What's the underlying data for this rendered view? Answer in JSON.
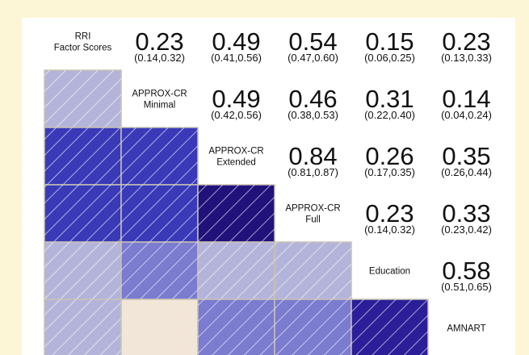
{
  "colors": {
    "background": "#fdf6d6",
    "panel": "#ffffff",
    "cell_border": "#c8c2b4",
    "hatch": "#ffffff",
    "scale_strong_positive": "#21117a",
    "scale_positive": "#3a3ab8",
    "scale_moderate": "#7b7bd0",
    "scale_weak": "#b4b4da",
    "scale_near_zero": "#f2e6d8"
  },
  "chart_data": {
    "type": "heatmap",
    "title": "",
    "variables": [
      {
        "label_lines": [
          "RRI",
          "Factor Scores"
        ]
      },
      {
        "label_lines": [
          "APPROX-CR",
          "Minimal"
        ]
      },
      {
        "label_lines": [
          "APPROX-CR",
          "Extended"
        ]
      },
      {
        "label_lines": [
          "APPROX-CR",
          "Full"
        ]
      },
      {
        "label_lines": [
          "Education"
        ]
      },
      {
        "label_lines": [
          "AMNART"
        ]
      }
    ],
    "correlations": [
      {
        "row": 0,
        "col": 1,
        "r": "0.23",
        "ci": "(0.14,0.32)"
      },
      {
        "row": 0,
        "col": 2,
        "r": "0.49",
        "ci": "(0.41,0.56)"
      },
      {
        "row": 0,
        "col": 3,
        "r": "0.54",
        "ci": "(0.47,0.60)"
      },
      {
        "row": 0,
        "col": 4,
        "r": "0.15",
        "ci": "(0.06,0.25)"
      },
      {
        "row": 0,
        "col": 5,
        "r": "0.23",
        "ci": "(0.13,0.33)"
      },
      {
        "row": 1,
        "col": 2,
        "r": "0.49",
        "ci": "(0.42,0.56)"
      },
      {
        "row": 1,
        "col": 3,
        "r": "0.46",
        "ci": "(0.38,0.53)"
      },
      {
        "row": 1,
        "col": 4,
        "r": "0.31",
        "ci": "(0.22,0.40)"
      },
      {
        "row": 1,
        "col": 5,
        "r": "0.14",
        "ci": "(0.04,0.24)"
      },
      {
        "row": 2,
        "col": 3,
        "r": "0.84",
        "ci": "(0.81,0.87)"
      },
      {
        "row": 2,
        "col": 4,
        "r": "0.26",
        "ci": "(0.17,0.35)"
      },
      {
        "row": 2,
        "col": 5,
        "r": "0.35",
        "ci": "(0.26,0.44)"
      },
      {
        "row": 3,
        "col": 4,
        "r": "0.23",
        "ci": "(0.14,0.32)"
      },
      {
        "row": 3,
        "col": 5,
        "r": "0.33",
        "ci": "(0.23,0.42)"
      },
      {
        "row": 4,
        "col": 5,
        "r": "0.58",
        "ci": "(0.51,0.65)"
      }
    ],
    "cells": [
      {
        "row": 1,
        "col": 0,
        "color": "#b4b4da",
        "hatched": true
      },
      {
        "row": 2,
        "col": 0,
        "color": "#3a3ab8",
        "hatched": true
      },
      {
        "row": 2,
        "col": 1,
        "color": "#3a3ab8",
        "hatched": true
      },
      {
        "row": 3,
        "col": 0,
        "color": "#3a3ab8",
        "hatched": true
      },
      {
        "row": 3,
        "col": 1,
        "color": "#3a3ab8",
        "hatched": true
      },
      {
        "row": 3,
        "col": 2,
        "color": "#21117a",
        "hatched": true
      },
      {
        "row": 4,
        "col": 0,
        "color": "#b4b4da",
        "hatched": true
      },
      {
        "row": 4,
        "col": 1,
        "color": "#7b7bd0",
        "hatched": true
      },
      {
        "row": 4,
        "col": 2,
        "color": "#b4b4da",
        "hatched": true
      },
      {
        "row": 4,
        "col": 3,
        "color": "#b4b4da",
        "hatched": true
      },
      {
        "row": 5,
        "col": 0,
        "color": "#b4b4da",
        "hatched": true
      },
      {
        "row": 5,
        "col": 1,
        "color": "#f2e6d8",
        "hatched": false
      },
      {
        "row": 5,
        "col": 2,
        "color": "#7b7bd0",
        "hatched": true
      },
      {
        "row": 5,
        "col": 3,
        "color": "#7b7bd0",
        "hatched": true
      },
      {
        "row": 5,
        "col": 4,
        "color": "#2b1e98",
        "hatched": true
      }
    ]
  }
}
